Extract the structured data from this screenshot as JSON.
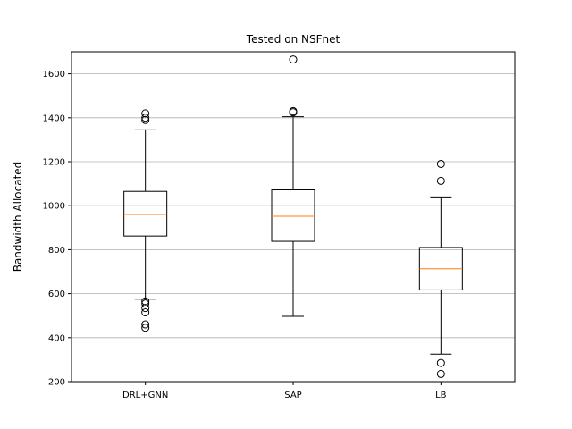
{
  "chart_data": {
    "type": "box",
    "title": "Tested on NSFnet",
    "xlabel": "",
    "ylabel": "Bandwidth Allocated",
    "ylim": [
      200,
      1700
    ],
    "yticks": [
      200,
      400,
      600,
      800,
      1000,
      1200,
      1400,
      1600
    ],
    "grid": "horizontal",
    "categories": [
      "DRL+GNN",
      "SAP",
      "LB"
    ],
    "boxes": [
      {
        "label": "DRL+GNN",
        "whisker_low": 575,
        "q1": 862,
        "median": 960,
        "q3": 1065,
        "whisker_high": 1345,
        "outliers": [
          1420,
          1400,
          1390,
          565,
          555,
          535,
          515,
          460,
          445
        ]
      },
      {
        "label": "SAP",
        "whisker_low": 497,
        "q1": 838,
        "median": 952,
        "q3": 1072,
        "whisker_high": 1405,
        "outliers": [
          1665,
          1430,
          1425
        ]
      },
      {
        "label": "LB",
        "whisker_low": 325,
        "q1": 617,
        "median": 713,
        "q3": 810,
        "whisker_high": 1040,
        "outliers": [
          1190,
          1113,
          285,
          235
        ]
      }
    ],
    "colors": {
      "box": "#000000",
      "median": "#ff7f0e",
      "grid": "#b0b0b0"
    }
  }
}
